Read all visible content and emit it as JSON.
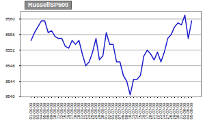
{
  "chart_data": {
    "type": "line",
    "title": "RussellSP500",
    "categories": [
      "01-06-09",
      "02-06-09",
      "03-06-09",
      "04-06-09",
      "05-06-09",
      "08-06-09",
      "09-06-09",
      "10-06-09",
      "11-06-09",
      "12-06-09",
      "15-06-09",
      "16-06-09",
      "17-06-09",
      "18-06-09",
      "19-06-09",
      "22-06-09",
      "23-06-09",
      "24-06-09",
      "25-06-09",
      "26-06-09",
      "29-06-09",
      "30-06-09",
      "01-07-09",
      "02-07-09",
      "03-07-09",
      "06-07-09",
      "07-07-09",
      "08-07-09",
      "09-07-09",
      "10-07-09",
      "13-07-09",
      "14-07-09",
      "15-07-09",
      "16-07-09",
      "17-07-09",
      "20-07-09",
      "21-07-09",
      "22-07-09",
      "23-07-09",
      "24-07-09",
      "27-07-09",
      "28-07-09",
      "29-07-09",
      "30-07-09",
      "31-07-09",
      "03-08-09",
      "04-08-09",
      "05-08-09"
    ],
    "values": [
      8554.5,
      8556.5,
      8558,
      8559.5,
      8559.5,
      8556.5,
      8557,
      8555.5,
      8555,
      8555,
      8553,
      8552.5,
      8554.5,
      8553.5,
      8554.5,
      8551,
      8548,
      8549,
      8551.5,
      8555,
      8549.5,
      8550.5,
      8556.5,
      8553.5,
      8553.5,
      8549,
      8549,
      8545.5,
      8544,
      8540.5,
      8544.5,
      8544.5,
      8545.5,
      8550.5,
      8552,
      8551,
      8549.5,
      8551.5,
      8549,
      8551.5,
      8555,
      8556,
      8558,
      8559,
      8558.5,
      8561,
      8555,
      8559.5
    ],
    "color": "#1f1fcc",
    "ylim": [
      8540,
      8562
    ],
    "yticks": [
      8540,
      8544,
      8548,
      8552,
      8556,
      8560
    ],
    "grid": true
  }
}
